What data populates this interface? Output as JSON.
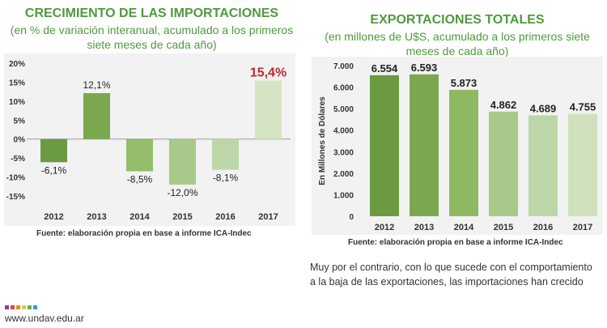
{
  "left_chart": {
    "title": "CRECIMIENTO DE LAS IMPORTACIONES",
    "subtitle_line1": "(en % de variación interanual, acumulado a los primeros",
    "subtitle_line2": "siete meses de cada año)",
    "source": "Fuente: elaboración propia en base a informe ICA-Indec"
  },
  "right_chart": {
    "title": "EXPORTACIONES TOTALES",
    "subtitle_line1": "(en millones de U$S, acumulado a los primeros siete",
    "subtitle_line2": "meses de cada año)",
    "source": "Fuente: elaboración propia en base a informe ICA-Indec"
  },
  "body_text": {
    "line1": "Muy por el contrario, con lo que sucede con el comportamiento",
    "line2": "a la baja de las exportaciones, las importaciones han crecido"
  },
  "footer": {
    "url": "www.undav.edu.ar",
    "dot_colors": [
      "#8e3a8b",
      "#d84a3b",
      "#e58a2e",
      "#f0c33c",
      "#6ab04c",
      "#3a9ad9"
    ]
  },
  "chart_data": [
    {
      "type": "bar",
      "title": "CRECIMIENTO DE LAS IMPORTACIONES",
      "categories": [
        "2012",
        "2013",
        "2014",
        "2015",
        "2016",
        "2017"
      ],
      "values": [
        -6.1,
        12.1,
        -8.5,
        -12.0,
        -8.1,
        15.4
      ],
      "data_labels": [
        "-6,1%",
        "12,1%",
        "-8,5%",
        "-12,0%",
        "-8,1%",
        "15,4%"
      ],
      "bar_colors": [
        "#6b9a43",
        "#7ba84f",
        "#95bd6b",
        "#a9c98a",
        "#bdd6a8",
        "#d5e5c4"
      ],
      "highlight_color": "#c0272d",
      "ylim": [
        -15,
        20
      ],
      "yticks": [
        20,
        15,
        10,
        5,
        0,
        -5,
        -10,
        -15
      ],
      "ytick_labels": [
        "20%",
        "15%",
        "10%",
        "5%",
        "0%",
        "-5%",
        "-10%",
        "-15%"
      ],
      "grid": false,
      "xlabel": "",
      "ylabel": ""
    },
    {
      "type": "bar",
      "title": "EXPORTACIONES TOTALES",
      "categories": [
        "2012",
        "2013",
        "2014",
        "2015",
        "2016",
        "2017"
      ],
      "values": [
        6554,
        6593,
        5873,
        4862,
        4689,
        4755
      ],
      "data_labels": [
        "6.554",
        "6.593",
        "5.873",
        "4.862",
        "4.689",
        "4.755"
      ],
      "bar_colors": [
        "#6b9a43",
        "#7ba84f",
        "#8fb863",
        "#a9c98a",
        "#bdd6a8",
        "#cfe1bc"
      ],
      "ylim": [
        0,
        7000
      ],
      "yticks": [
        7000,
        6000,
        5000,
        4000,
        3000,
        2000,
        1000,
        0
      ],
      "ytick_labels": [
        "7.000",
        "6.000",
        "5.000",
        "4.000",
        "3.000",
        "2.000",
        "1.000",
        "0"
      ],
      "grid": false,
      "xlabel": "",
      "ylabel": "En Millones de Dólares"
    }
  ]
}
